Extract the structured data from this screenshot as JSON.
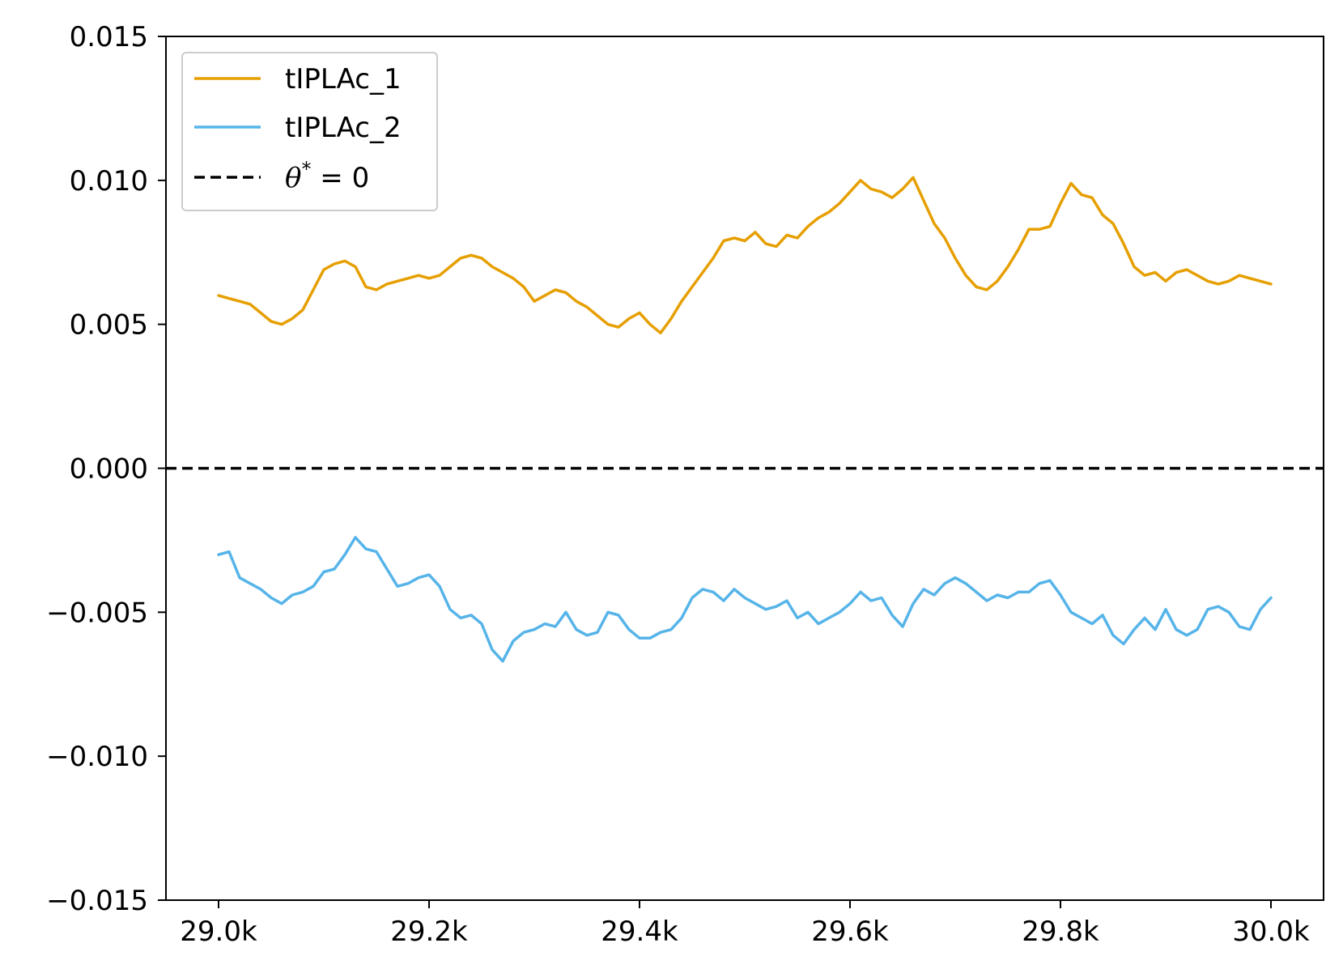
{
  "chart_data": {
    "type": "line",
    "x_unit_suffix": "k",
    "xlim": [
      28950,
      30050
    ],
    "ylim": [
      -0.015,
      0.015
    ],
    "x_ticks": [
      29000,
      29200,
      29400,
      29600,
      29800,
      30000
    ],
    "x_tick_labels": [
      "29.0k",
      "29.2k",
      "29.4k",
      "29.6k",
      "29.8k",
      "30.0k"
    ],
    "y_ticks": [
      0.015,
      0.01,
      0.005,
      0.0,
      -0.005,
      -0.01,
      -0.015
    ],
    "y_tick_labels": [
      "0.015",
      "0.010",
      "0.005",
      "0.000",
      "−0.005",
      "−0.010",
      "−0.015"
    ],
    "grid": false,
    "legend_position": "top-left",
    "reference_line": {
      "y": 0,
      "label_symbol": "θ",
      "label_superscript": "*",
      "label_rest": " = 0",
      "color": "#000000",
      "dash": true
    },
    "series": [
      {
        "name": "tIPLAc_1",
        "color": "#E69F00",
        "x": [
          29000,
          29010,
          29020,
          29030,
          29040,
          29050,
          29060,
          29070,
          29080,
          29090,
          29100,
          29110,
          29120,
          29130,
          29140,
          29150,
          29160,
          29170,
          29180,
          29190,
          29200,
          29210,
          29220,
          29230,
          29240,
          29250,
          29260,
          29270,
          29280,
          29290,
          29300,
          29310,
          29320,
          29330,
          29340,
          29350,
          29360,
          29370,
          29380,
          29390,
          29400,
          29410,
          29420,
          29430,
          29440,
          29450,
          29460,
          29470,
          29480,
          29490,
          29500,
          29510,
          29520,
          29530,
          29540,
          29550,
          29560,
          29570,
          29580,
          29590,
          29600,
          29610,
          29620,
          29630,
          29640,
          29650,
          29660,
          29670,
          29680,
          29690,
          29700,
          29710,
          29720,
          29730,
          29740,
          29750,
          29760,
          29770,
          29780,
          29790,
          29800,
          29810,
          29820,
          29830,
          29840,
          29850,
          29860,
          29870,
          29880,
          29890,
          29900,
          29910,
          29920,
          29930,
          29940,
          29950,
          29960,
          29970,
          29980,
          29990,
          30000
        ],
        "y": [
          0.006,
          0.0059,
          0.0058,
          0.0057,
          0.0054,
          0.0051,
          0.005,
          0.0052,
          0.0055,
          0.0062,
          0.0069,
          0.0071,
          0.0072,
          0.007,
          0.0063,
          0.0062,
          0.0064,
          0.0065,
          0.0066,
          0.0067,
          0.0066,
          0.0067,
          0.007,
          0.0073,
          0.0074,
          0.0073,
          0.007,
          0.0068,
          0.0066,
          0.0063,
          0.0058,
          0.006,
          0.0062,
          0.0061,
          0.0058,
          0.0056,
          0.0053,
          0.005,
          0.0049,
          0.0052,
          0.0054,
          0.005,
          0.0047,
          0.0052,
          0.0058,
          0.0063,
          0.0068,
          0.0073,
          0.0079,
          0.008,
          0.0079,
          0.0082,
          0.0078,
          0.0077,
          0.0081,
          0.008,
          0.0084,
          0.0087,
          0.0089,
          0.0092,
          0.0096,
          0.01,
          0.0097,
          0.0096,
          0.0094,
          0.0097,
          0.0101,
          0.0093,
          0.0085,
          0.008,
          0.0073,
          0.0067,
          0.0063,
          0.0062,
          0.0065,
          0.007,
          0.0076,
          0.0083,
          0.0083,
          0.0084,
          0.0092,
          0.0099,
          0.0095,
          0.0094,
          0.0088,
          0.0085,
          0.0078,
          0.007,
          0.0067,
          0.0068,
          0.0065,
          0.0068,
          0.0069,
          0.0067,
          0.0065,
          0.0064,
          0.0065,
          0.0067,
          0.0066,
          0.0065,
          0.0064
        ]
      },
      {
        "name": "tIPLAc_2",
        "color": "#56B4E9",
        "x": [
          29000,
          29010,
          29020,
          29030,
          29040,
          29050,
          29060,
          29070,
          29080,
          29090,
          29100,
          29110,
          29120,
          29130,
          29140,
          29150,
          29160,
          29170,
          29180,
          29190,
          29200,
          29210,
          29220,
          29230,
          29240,
          29250,
          29260,
          29270,
          29280,
          29290,
          29300,
          29310,
          29320,
          29330,
          29340,
          29350,
          29360,
          29370,
          29380,
          29390,
          29400,
          29410,
          29420,
          29430,
          29440,
          29450,
          29460,
          29470,
          29480,
          29490,
          29500,
          29510,
          29520,
          29530,
          29540,
          29550,
          29560,
          29570,
          29580,
          29590,
          29600,
          29610,
          29620,
          29630,
          29640,
          29650,
          29660,
          29670,
          29680,
          29690,
          29700,
          29710,
          29720,
          29730,
          29740,
          29750,
          29760,
          29770,
          29780,
          29790,
          29800,
          29810,
          29820,
          29830,
          29840,
          29850,
          29860,
          29870,
          29880,
          29890,
          29900,
          29910,
          29920,
          29930,
          29940,
          29950,
          29960,
          29970,
          29980,
          29990,
          30000
        ],
        "y": [
          -0.003,
          -0.0029,
          -0.0038,
          -0.004,
          -0.0042,
          -0.0045,
          -0.0047,
          -0.0044,
          -0.0043,
          -0.0041,
          -0.0036,
          -0.0035,
          -0.003,
          -0.0024,
          -0.0028,
          -0.0029,
          -0.0035,
          -0.0041,
          -0.004,
          -0.0038,
          -0.0037,
          -0.0041,
          -0.0049,
          -0.0052,
          -0.0051,
          -0.0054,
          -0.0063,
          -0.0067,
          -0.006,
          -0.0057,
          -0.0056,
          -0.0054,
          -0.0055,
          -0.005,
          -0.0056,
          -0.0058,
          -0.0057,
          -0.005,
          -0.0051,
          -0.0056,
          -0.0059,
          -0.0059,
          -0.0057,
          -0.0056,
          -0.0052,
          -0.0045,
          -0.0042,
          -0.0043,
          -0.0046,
          -0.0042,
          -0.0045,
          -0.0047,
          -0.0049,
          -0.0048,
          -0.0046,
          -0.0052,
          -0.005,
          -0.0054,
          -0.0052,
          -0.005,
          -0.0047,
          -0.0043,
          -0.0046,
          -0.0045,
          -0.0051,
          -0.0055,
          -0.0047,
          -0.0042,
          -0.0044,
          -0.004,
          -0.0038,
          -0.004,
          -0.0043,
          -0.0046,
          -0.0044,
          -0.0045,
          -0.0043,
          -0.0043,
          -0.004,
          -0.0039,
          -0.0044,
          -0.005,
          -0.0052,
          -0.0054,
          -0.0051,
          -0.0058,
          -0.0061,
          -0.0056,
          -0.0052,
          -0.0056,
          -0.0049,
          -0.0056,
          -0.0058,
          -0.0056,
          -0.0049,
          -0.0048,
          -0.005,
          -0.0055,
          -0.0056,
          -0.0049,
          -0.0045
        ]
      }
    ]
  }
}
